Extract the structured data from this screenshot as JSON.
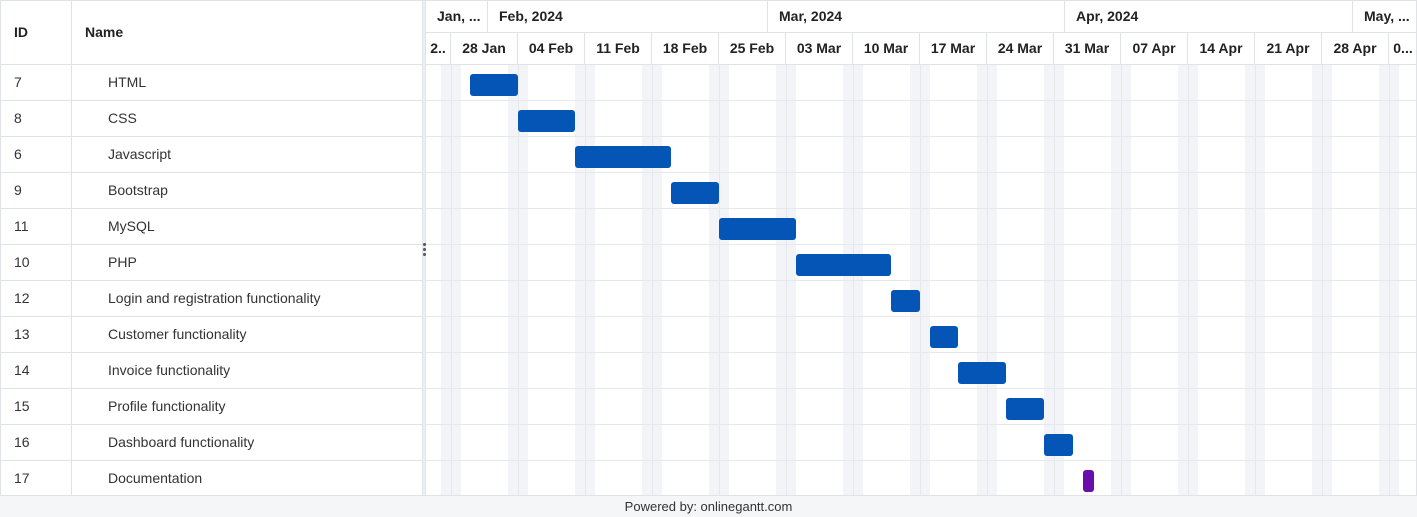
{
  "grid": {
    "columns": {
      "id": "ID",
      "name": "Name"
    },
    "rows": [
      {
        "id": "7",
        "name": "HTML"
      },
      {
        "id": "8",
        "name": "CSS"
      },
      {
        "id": "6",
        "name": "Javascript"
      },
      {
        "id": "9",
        "name": "Bootstrap"
      },
      {
        "id": "11",
        "name": "MySQL"
      },
      {
        "id": "10",
        "name": "PHP"
      },
      {
        "id": "12",
        "name": "Login and registration functionality"
      },
      {
        "id": "13",
        "name": "Customer functionality"
      },
      {
        "id": "14",
        "name": "Invoice functionality"
      },
      {
        "id": "15",
        "name": "Profile functionality"
      },
      {
        "id": "16",
        "name": "Dashboard functionality"
      },
      {
        "id": "17",
        "name": "Documentation"
      }
    ]
  },
  "scale": {
    "months": [
      "Jan, ...",
      "Feb, 2024",
      "Mar, 2024",
      "Apr, 2024",
      "May, ..."
    ],
    "weeks": [
      "2..",
      "28 Jan",
      "04 Feb",
      "11 Feb",
      "18 Feb",
      "25 Feb",
      "03 Mar",
      "10 Mar",
      "17 Mar",
      "24 Mar",
      "31 Mar",
      "07 Apr",
      "14 Apr",
      "21 Apr",
      "28 Apr",
      "0..."
    ]
  },
  "tasks": [
    {
      "start": "2024-01-30",
      "end": "2024-02-03",
      "color": "#0455b5"
    },
    {
      "start": "2024-02-04",
      "end": "2024-02-09",
      "color": "#0455b5"
    },
    {
      "start": "2024-02-10",
      "end": "2024-02-19",
      "color": "#0455b5"
    },
    {
      "start": "2024-02-20",
      "end": "2024-02-24",
      "color": "#0455b5"
    },
    {
      "start": "2024-02-25",
      "end": "2024-03-03",
      "color": "#0455b5"
    },
    {
      "start": "2024-03-04",
      "end": "2024-03-13",
      "color": "#0455b5"
    },
    {
      "start": "2024-03-14",
      "end": "2024-03-16",
      "color": "#0455b5"
    },
    {
      "start": "2024-03-18",
      "end": "2024-03-20",
      "color": "#0455b5"
    },
    {
      "start": "2024-03-21",
      "end": "2024-03-25",
      "color": "#0455b5"
    },
    {
      "start": "2024-03-26",
      "end": "2024-03-29",
      "color": "#0455b5"
    },
    {
      "start": "2024-03-30",
      "end": "2024-04-01",
      "color": "#0455b5"
    },
    {
      "start": "2024-04-03",
      "end": "2024-04-03",
      "color": "#6a0dad"
    }
  ],
  "footer": {
    "text": "Powered by: onlinegantt.com"
  }
}
